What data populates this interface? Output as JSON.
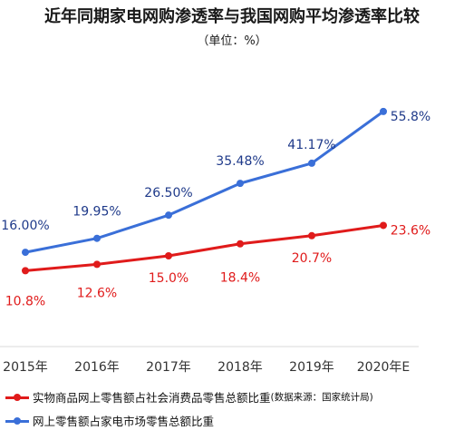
{
  "title": "近年同期家电网购渗透率与我国网购平均渗透率比较",
  "subtitle": "（单位：%）",
  "chart_data": {
    "type": "line",
    "categories": [
      "2015年",
      "2016年",
      "2017年",
      "2018年",
      "2019年",
      "2020年E"
    ],
    "series": [
      {
        "name": "网上零售额占家电市场零售总额比重",
        "values": [
          16.0,
          19.95,
          26.5,
          35.48,
          41.17,
          55.8
        ],
        "labels": [
          "16.00%",
          "19.95%",
          "26.50%",
          "35.48%",
          "41.17%",
          "55.8%"
        ],
        "color": "#3a6fd8",
        "label_color": "#1f3a8a"
      },
      {
        "name": "实物商品网上零售额占社会消费品零售总额比重",
        "values": [
          10.8,
          12.6,
          15.0,
          18.4,
          20.7,
          23.6
        ],
        "labels": [
          "10.8%",
          "12.6%",
          "15.0%",
          "18.4%",
          "20.7%",
          "23.6%"
        ],
        "color": "#e01b1b",
        "label_color": "#e01b1b"
      }
    ]
  },
  "legend": {
    "red_label": "实物商品网上零售额占社会消费品零售总额比重",
    "red_note": "(数据来源：国家统计局)",
    "blue_label": "网上零售额占家电市场零售总额比重"
  }
}
